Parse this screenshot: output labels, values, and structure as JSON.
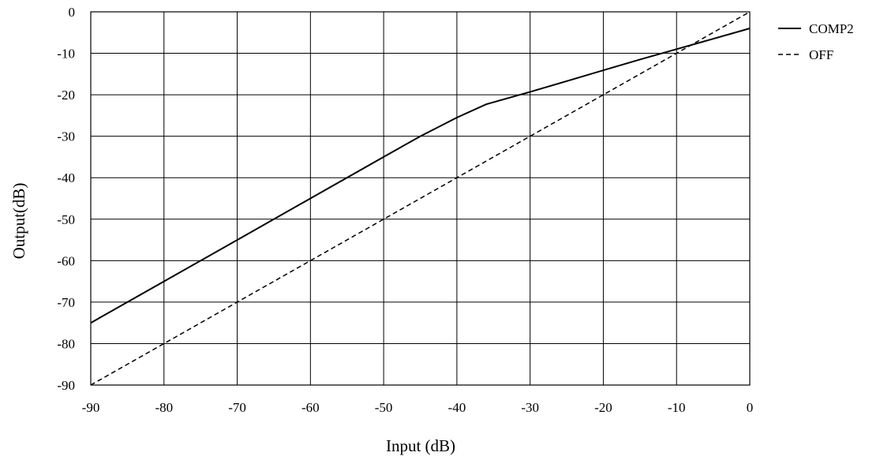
{
  "chart_data": {
    "type": "line",
    "title": "",
    "xlabel": "Input (dB)",
    "ylabel": "Output(dB)",
    "xlim": [
      -90,
      0
    ],
    "ylim": [
      -90,
      0
    ],
    "x_ticks": [
      -90,
      -80,
      -70,
      -60,
      -50,
      -40,
      -30,
      -20,
      -10,
      0
    ],
    "y_ticks": [
      0,
      -10,
      -20,
      -30,
      -40,
      -50,
      -60,
      -70,
      -80,
      -90
    ],
    "grid": true,
    "legend_position": "right-top",
    "series": [
      {
        "name": "COMP2",
        "style": "solid",
        "color": "#000000",
        "x": [
          -90,
          -80,
          -70,
          -60,
          -50,
          -45,
          -40,
          -36,
          -33,
          -30,
          -25,
          -20,
          -15,
          -10,
          -5,
          0
        ],
        "y": [
          -75,
          -65,
          -55,
          -45,
          -35,
          -30,
          -25.5,
          -22.3,
          -20.8,
          -19.3,
          -16.7,
          -14.1,
          -11.5,
          -9.0,
          -6.5,
          -4.0
        ]
      },
      {
        "name": "OFF",
        "style": "dashed",
        "color": "#000000",
        "x": [
          -90,
          0
        ],
        "y": [
          -90,
          0
        ]
      }
    ]
  }
}
